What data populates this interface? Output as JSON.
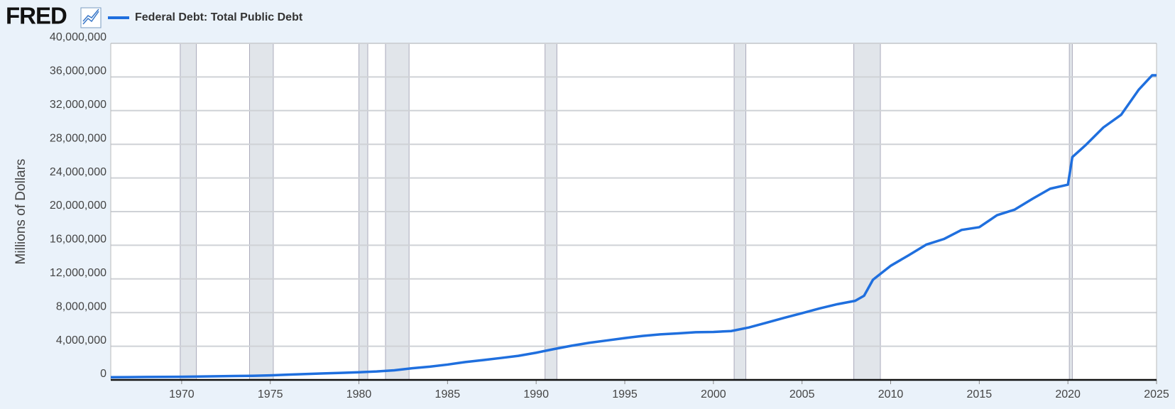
{
  "logo": "FRED",
  "chart_data": {
    "type": "line",
    "y_label": "Millions of Dollars",
    "series": [
      {
        "name": "Federal Debt: Total Public Debt",
        "color": "#1f6fde",
        "x": [
          1966,
          1967,
          1968,
          1969,
          1970,
          1971,
          1972,
          1973,
          1974,
          1975,
          1976,
          1977,
          1978,
          1979,
          1980,
          1981,
          1982,
          1983,
          1984,
          1985,
          1986,
          1987,
          1988,
          1989,
          1990,
          1991,
          1992,
          1993,
          1994,
          1995,
          1996,
          1997,
          1998,
          1999,
          2000,
          2001,
          2002,
          2003,
          2004,
          2005,
          2006,
          2007,
          2008,
          2008.5,
          2009,
          2010,
          2011,
          2012,
          2013,
          2014,
          2015,
          2016,
          2017,
          2018,
          2019,
          2020,
          2020.25,
          2021,
          2022,
          2023,
          2024,
          2024.75,
          2025
        ],
        "values": [
          320000,
          330000,
          350000,
          360000,
          370000,
          400000,
          430000,
          460000,
          480000,
          540000,
          620000,
          700000,
          770000,
          830000,
          910000,
          1000000,
          1140000,
          1380000,
          1570000,
          1820000,
          2120000,
          2350000,
          2600000,
          2860000,
          3230000,
          3660000,
          4060000,
          4410000,
          4690000,
          4970000,
          5220000,
          5410000,
          5530000,
          5660000,
          5700000,
          5800000,
          6230000,
          6800000,
          7380000,
          7930000,
          8500000,
          9000000,
          9400000,
          10000000,
          11900000,
          13560000,
          14790000,
          16070000,
          16740000,
          17820000,
          18150000,
          19570000,
          20240000,
          21520000,
          22720000,
          23200000,
          26480000,
          27900000,
          30000000,
          31500000,
          34500000,
          36200000,
          36200000
        ]
      }
    ],
    "recessions": [
      [
        1969.92,
        1970.83
      ],
      [
        1973.83,
        1975.17
      ],
      [
        1980.0,
        1980.5
      ],
      [
        1981.5,
        1982.83
      ],
      [
        1990.5,
        1991.17
      ],
      [
        2001.17,
        2001.83
      ],
      [
        2007.92,
        2009.42
      ],
      [
        2020.08,
        2020.25
      ]
    ],
    "xlim": [
      1966,
      2025
    ],
    "xticks": [
      1970,
      1975,
      1980,
      1985,
      1990,
      1995,
      2000,
      2005,
      2010,
      2015,
      2020,
      2025
    ],
    "ylim": [
      0,
      40000000
    ],
    "yticks": [
      0,
      {
        "value": 4000000,
        "label": "4,000,000"
      },
      {
        "value": 8000000,
        "label": "8,000,000"
      },
      {
        "value": 12000000,
        "label": "12,000,000"
      },
      {
        "value": 16000000,
        "label": "16,000,000"
      },
      {
        "value": 20000000,
        "label": "20,000,000"
      },
      {
        "value": 24000000,
        "label": "24,000,000"
      },
      {
        "value": 28000000,
        "label": "28,000,000"
      },
      {
        "value": 32000000,
        "label": "32,000,000"
      },
      {
        "value": 36000000,
        "label": "36,000,000"
      },
      {
        "value": 40000000,
        "label": "40,000,000"
      }
    ],
    "grid": true
  }
}
